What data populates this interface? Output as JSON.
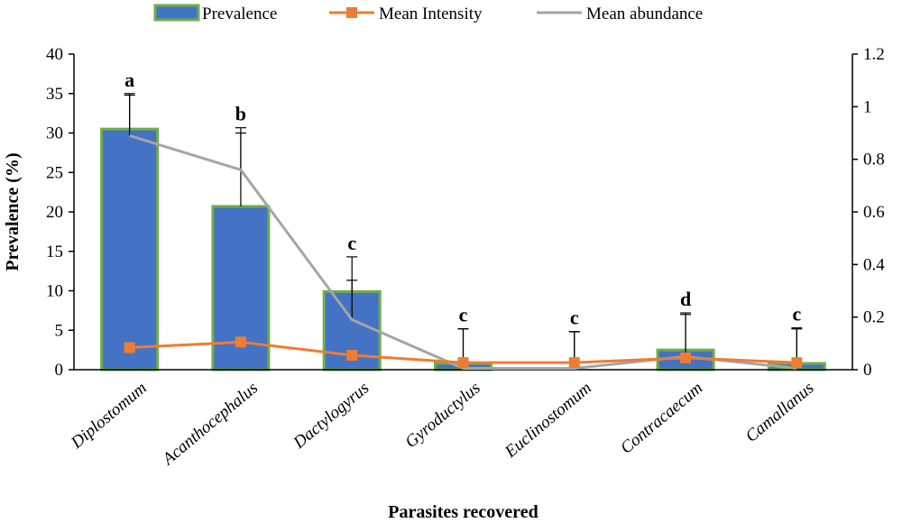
{
  "chart_data": {
    "type": "bar",
    "categories": [
      "Diplostomum",
      "Acanthocephalus",
      "Dactylogyrus",
      "Gyroductylus",
      "Euclinostomum",
      "Contracaecum",
      "Camallanus"
    ],
    "xlabel": "Parasites recovered",
    "ylabel": "Prevalence (%)",
    "ylim": [
      0,
      40
    ],
    "y_ticks": [
      "0",
      "5",
      "10",
      "15",
      "20",
      "25",
      "30",
      "35",
      "40"
    ],
    "y2lim": [
      0,
      1.2
    ],
    "y2_ticks": [
      "0",
      "0.2",
      "0.4",
      "0.6",
      "0.8",
      "1",
      "1.2"
    ],
    "legend_position": "top",
    "series": [
      {
        "name": "Prevalence",
        "type": "bar",
        "axis": "left",
        "color": "#4472c4",
        "border_color": "#70ad47",
        "values": [
          30.5,
          20.7,
          9.9,
          0.8,
          0.0,
          2.5,
          0.8
        ],
        "error": [
          4.3,
          9.3,
          4.4,
          4.4,
          4.8,
          4.7,
          4.5
        ],
        "significance": [
          "a",
          "b",
          "c",
          "c",
          "c",
          "d",
          "c"
        ]
      },
      {
        "name": "Mean Intensity",
        "type": "line",
        "axis": "right",
        "color": "#ed7d31",
        "marker": "square",
        "values": [
          0.084,
          0.105,
          0.055,
          0.027,
          0.027,
          0.045,
          0.027
        ]
      },
      {
        "name": "Mean abundance",
        "type": "line",
        "axis": "right",
        "color": "#a5a5a5",
        "marker": "none",
        "values": [
          0.89,
          0.76,
          0.19,
          0.005,
          0.005,
          0.05,
          0.005
        ]
      }
    ],
    "secondary_line_errors": [
      0.16,
      0.16,
      0.15,
      0.15,
      0.14,
      0.16,
      0.15
    ]
  }
}
